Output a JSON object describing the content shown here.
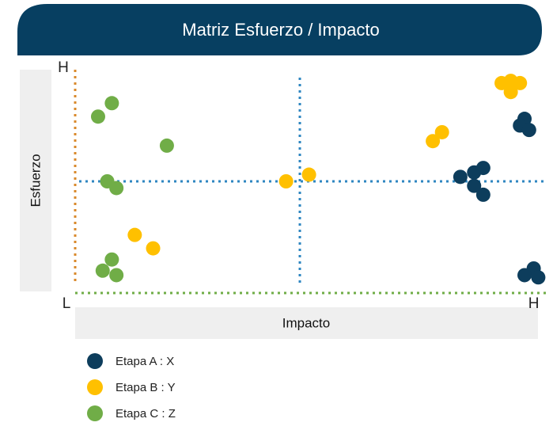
{
  "chart_data": {
    "type": "scatter",
    "title": "Matriz Esfuerzo / Impacto",
    "x_label": "Impacto",
    "y_label": "Esfuerzo",
    "xlim": [
      0,
      103
    ],
    "ylim": [
      0,
      100
    ],
    "xticks": [
      {
        "value": 0,
        "label": "L"
      },
      {
        "value": 100,
        "label": "H"
      }
    ],
    "yticks": [
      {
        "value": 100,
        "label": "H"
      }
    ],
    "reference_lines": {
      "x": 49,
      "y": 50
    },
    "legend": "bottom-left",
    "series": [
      {
        "name": "Etapa A : X",
        "color": "#0d3d5c",
        "x": [
          84,
          87,
          89,
          87,
          89,
          98,
          97,
          99,
          100,
          98,
          101
        ],
        "values": [
          52,
          54,
          56,
          48,
          44,
          78,
          75,
          73,
          11,
          8,
          7
        ]
      },
      {
        "name": "Etapa B : Y",
        "color": "#ffc000",
        "x": [
          93,
          95,
          97,
          95,
          78,
          80,
          46,
          51,
          13,
          17
        ],
        "values": [
          94,
          95,
          94,
          90,
          68,
          72,
          50,
          53,
          26,
          20
        ]
      },
      {
        "name": "Etapa C : Z",
        "color": "#70ad47",
        "x": [
          8,
          5,
          20,
          7,
          9,
          8,
          6,
          9
        ],
        "values": [
          85,
          79,
          66,
          50,
          47,
          15,
          10,
          8
        ]
      }
    ]
  }
}
